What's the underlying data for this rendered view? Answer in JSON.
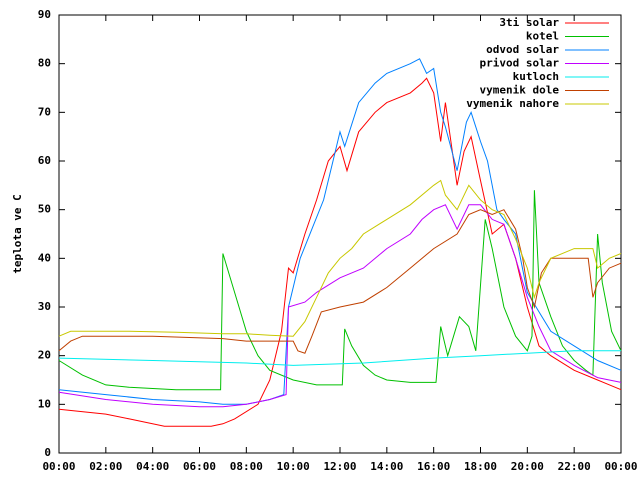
{
  "chart_data": {
    "type": "line",
    "ylabel": "teplota ve C",
    "xlim": [
      0,
      24
    ],
    "ylim": [
      0,
      90
    ],
    "xticks": [
      {
        "value": 0,
        "label": "00:00"
      },
      {
        "value": 2,
        "label": "02:00"
      },
      {
        "value": 4,
        "label": "04:00"
      },
      {
        "value": 6,
        "label": "06:00"
      },
      {
        "value": 8,
        "label": "08:00"
      },
      {
        "value": 10,
        "label": "10:00"
      },
      {
        "value": 12,
        "label": "12:00"
      },
      {
        "value": 14,
        "label": "14:00"
      },
      {
        "value": 16,
        "label": "16:00"
      },
      {
        "value": 18,
        "label": "18:00"
      },
      {
        "value": 20,
        "label": "20:00"
      },
      {
        "value": 22,
        "label": "22:00"
      },
      {
        "value": 24,
        "label": "00:00"
      }
    ],
    "yticks": [
      0,
      10,
      20,
      30,
      40,
      50,
      60,
      70,
      80,
      90
    ],
    "grid": false,
    "legend": "top-right",
    "series": [
      {
        "name": "3ti solar",
        "color": "#ff0000",
        "x": [
          0,
          2,
          3,
          4.5,
          6,
          6.5,
          7,
          7.5,
          8.5,
          9,
          9.5,
          9.8,
          10,
          10.5,
          11,
          11.5,
          12,
          12.3,
          12.8,
          13.5,
          14,
          15,
          15.5,
          15.7,
          16,
          16.3,
          16.5,
          17,
          17.3,
          17.6,
          18,
          18.5,
          19,
          19.5,
          20,
          20.5,
          21,
          22,
          23,
          24
        ],
        "values": [
          9,
          8,
          7,
          5.5,
          5.5,
          5.5,
          6,
          7,
          10,
          15,
          25,
          38,
          37,
          45,
          52,
          60,
          63,
          58,
          66,
          70,
          72,
          74,
          76,
          77,
          74,
          64,
          72,
          55,
          62,
          65,
          56,
          45,
          47,
          40,
          30,
          22,
          20,
          17,
          15,
          13
        ]
      },
      {
        "name": "kotel",
        "color": "#00c000",
        "x": [
          0,
          1,
          2,
          3,
          5,
          6.9,
          7,
          7.5,
          8,
          8.5,
          9,
          10,
          11,
          12.1,
          12.2,
          12.5,
          13,
          13.5,
          14,
          15,
          16.1,
          16.3,
          16.6,
          17.1,
          17.5,
          17.8,
          18.2,
          18.5,
          19,
          19.5,
          20,
          20.2,
          20.3,
          20.5,
          21,
          21.5,
          22,
          22.5,
          22.8,
          23,
          23.2,
          23.6,
          24
        ],
        "values": [
          19,
          16,
          14,
          13.5,
          13,
          13,
          41,
          33,
          25,
          20,
          17,
          15,
          14,
          14,
          25.5,
          22,
          18,
          16,
          15,
          14.5,
          14.5,
          26,
          20,
          28,
          26,
          21,
          48,
          42,
          30,
          24,
          21,
          24,
          54,
          35,
          28,
          22,
          19,
          17,
          16,
          45,
          35,
          25,
          21
        ]
      },
      {
        "name": "odvod solar",
        "color": "#0080ff",
        "x": [
          0,
          2,
          4,
          6,
          7,
          8,
          9,
          9.6,
          9.8,
          10.3,
          10.8,
          11.3,
          11.7,
          12,
          12.2,
          12.8,
          13.5,
          14,
          15,
          15.4,
          15.7,
          16,
          16.3,
          16.5,
          17,
          17.4,
          17.6,
          18,
          18.3,
          18.7,
          19,
          19.5,
          20,
          20.5,
          21,
          22,
          23,
          24
        ],
        "values": [
          13,
          12,
          11,
          10.5,
          10,
          10,
          11,
          12,
          30,
          40,
          46,
          52,
          60,
          66,
          63,
          72,
          76,
          78,
          80,
          81,
          78,
          79,
          70,
          67,
          58,
          68,
          70,
          64,
          60,
          50,
          48,
          45,
          33,
          29,
          25,
          22,
          19,
          17
        ]
      },
      {
        "name": "privod solar",
        "color": "#c000ff",
        "x": [
          0,
          2,
          4,
          6,
          7,
          8,
          9,
          9.7,
          9.8,
          10.5,
          11,
          12,
          13,
          14,
          15,
          15.5,
          16,
          16.5,
          17,
          17.5,
          18,
          18.5,
          19,
          19.5,
          20,
          20.5,
          21,
          22,
          23,
          24
        ],
        "values": [
          12.5,
          11,
          10,
          9.5,
          9.5,
          10,
          11,
          12,
          30,
          31,
          33,
          36,
          38,
          42,
          45,
          48,
          50,
          51,
          46,
          51,
          51,
          48,
          47,
          40,
          32,
          26,
          21,
          18,
          15.5,
          14.5
        ]
      },
      {
        "name": "kutloch",
        "color": "#00eeee",
        "x": [
          0,
          4,
          8,
          10,
          13,
          16,
          18,
          20,
          22,
          24
        ],
        "values": [
          19.5,
          19,
          18.5,
          18,
          18.5,
          19.5,
          20,
          20.5,
          21,
          21
        ]
      },
      {
        "name": "vymenik dole",
        "color": "#c04000",
        "x": [
          0,
          0.5,
          1,
          4,
          7,
          8,
          9.8,
          10,
          10.2,
          10.5,
          10.8,
          11.2,
          12,
          13,
          14,
          15,
          16,
          17,
          17.5,
          18,
          18.5,
          19,
          19.5,
          19.8,
          20,
          20.3,
          20.6,
          21,
          22,
          22.6,
          22.8,
          23,
          23.5,
          24
        ],
        "values": [
          21,
          23,
          24,
          24,
          23.5,
          23,
          23,
          23,
          21,
          20.5,
          24,
          29,
          30,
          31,
          34,
          38,
          42,
          45,
          49,
          50,
          49,
          50,
          46,
          40,
          34,
          30,
          37,
          40,
          40,
          40,
          32,
          35,
          38,
          39
        ]
      },
      {
        "name": "vymenik nahore",
        "color": "#c8c800",
        "x": [
          0,
          0.5,
          3,
          5,
          7,
          8,
          9,
          10,
          10.5,
          11,
          11.5,
          12,
          12.5,
          13,
          14,
          15,
          16,
          16.3,
          16.5,
          17,
          17.5,
          18,
          18.5,
          19,
          19.5,
          20,
          20.3,
          20.5,
          21,
          22,
          22.8,
          23,
          23.5,
          24
        ],
        "values": [
          24,
          25,
          25,
          24.8,
          24.5,
          24.5,
          24.2,
          24,
          27,
          32,
          37,
          40,
          42,
          45,
          48,
          51,
          55,
          56,
          53,
          50,
          55,
          52,
          50,
          49,
          44,
          38,
          32,
          35,
          40,
          42,
          42,
          38,
          40,
          41
        ]
      }
    ]
  }
}
